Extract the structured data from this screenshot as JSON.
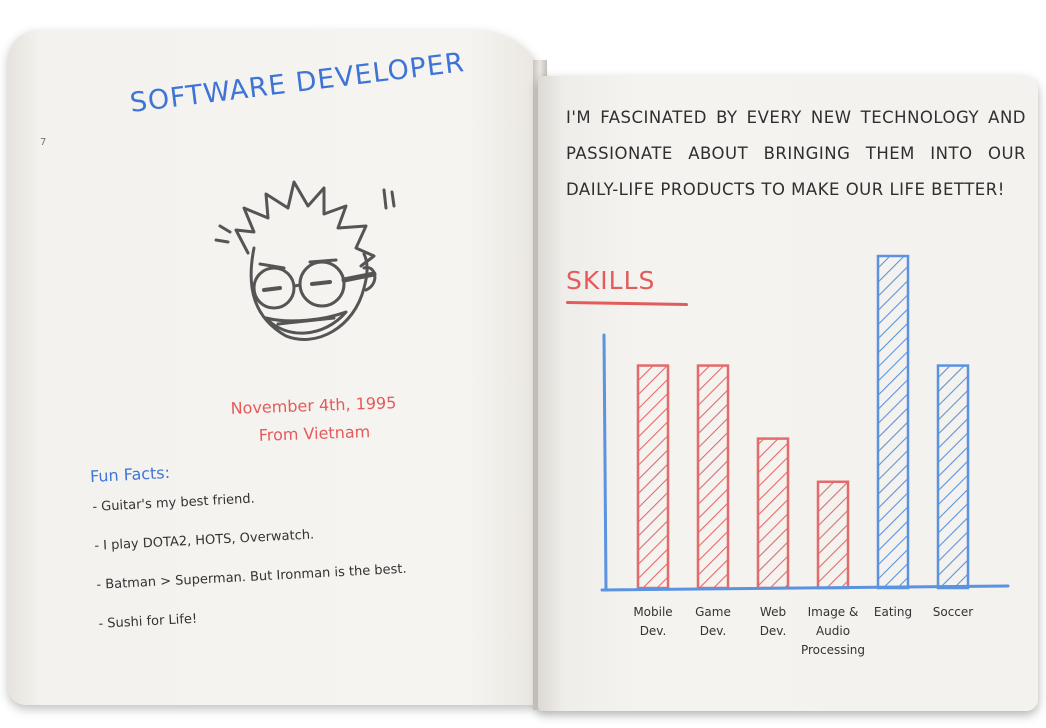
{
  "left_page": {
    "page_mark": "7",
    "title": "SOFTWARE DEVELOPER",
    "birth_line": "November 4th, 1995",
    "origin_line": "From Vietnam",
    "fun_facts_title": "Fun Facts:",
    "fun_facts": [
      "- Guitar's my best friend.",
      "- I play DOTA2, HOTS, Overwatch.",
      "- Batman > Superman. But Ironman is the best.",
      "- Sushi for Life!"
    ]
  },
  "right_page": {
    "intro": "I'm fascinated by every new technology and passionate about bringing them into our daily-life products to make our life better!",
    "skills_title": "Skills"
  },
  "colors": {
    "pencil_blue": "#3d74d6",
    "pencil_red": "#e35b5b",
    "bar_red": "#e36b6b",
    "bar_blue": "#5b93e0",
    "graphite": "#555555"
  },
  "chart_data": {
    "type": "bar",
    "title": "Skills",
    "xlabel": "",
    "ylabel": "",
    "ylim": [
      0,
      100
    ],
    "grid": false,
    "legend": "none",
    "categories": [
      [
        "Mobile",
        "Dev."
      ],
      [
        "Game",
        "Dev."
      ],
      [
        "Web",
        "Dev."
      ],
      [
        "Image &",
        "Audio",
        "Processing"
      ],
      [
        "Eating"
      ],
      [
        "Soccer"
      ]
    ],
    "values": [
      67,
      67,
      45,
      32,
      100,
      67
    ],
    "bar_colors": [
      "red",
      "red",
      "red",
      "red",
      "blue",
      "blue"
    ]
  }
}
